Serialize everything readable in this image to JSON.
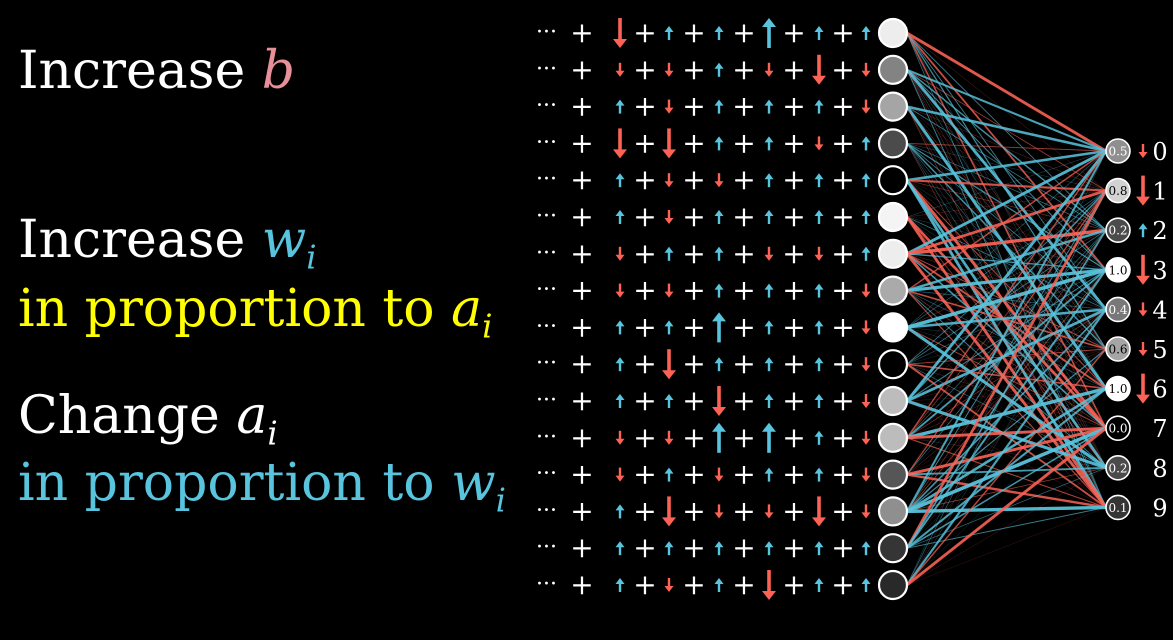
{
  "colors": {
    "background": "#000000",
    "white": "#ffffff",
    "yellow": "#ffff00",
    "blue": "#58c4dd",
    "red": "#fc6255",
    "pink": "#e8909a"
  },
  "text": {
    "line1": {
      "word": "Increase",
      "var": "b"
    },
    "line2": {
      "word": "Increase",
      "var": "w",
      "sub": "i"
    },
    "line3": {
      "word": "in proportion to",
      "var": "a",
      "sub": "i"
    },
    "line4": {
      "word": "Change",
      "var": "a",
      "sub": "i"
    },
    "line5": {
      "word": "in proportion to",
      "var": "w",
      "sub": "i"
    }
  },
  "sum_symbols": {
    "dots": "···",
    "plus": "+"
  },
  "hidden_layer": {
    "activations": [
      0.92,
      0.45,
      0.6,
      0.2,
      0.0,
      0.95,
      0.92,
      0.62,
      1.0,
      0.0,
      0.7,
      0.7,
      0.25,
      0.5,
      0.1,
      0.05
    ],
    "arrow_rows": [
      [
        -2,
        1,
        1,
        2,
        1,
        1,
        1
      ],
      [
        -1,
        -1,
        1,
        -1,
        -2,
        -1,
        0
      ],
      [
        1,
        -1,
        1,
        1,
        1,
        -1,
        2
      ],
      [
        -2,
        -2,
        1,
        1,
        -1,
        1,
        1
      ],
      [
        1,
        -1,
        -1,
        1,
        1,
        1,
        1
      ],
      [
        1,
        -1,
        1,
        1,
        1,
        1,
        -1
      ],
      [
        -1,
        1,
        1,
        -1,
        -1,
        1,
        -1
      ],
      [
        -1,
        -1,
        1,
        1,
        1,
        -1,
        1
      ],
      [
        1,
        1,
        2,
        1,
        1,
        -1,
        -2
      ],
      [
        1,
        -2,
        1,
        1,
        1,
        -1,
        1
      ],
      [
        1,
        1,
        -2,
        1,
        1,
        -1,
        1
      ],
      [
        -1,
        -1,
        2,
        2,
        1,
        -1,
        -1
      ],
      [
        -1,
        1,
        -1,
        1,
        1,
        -1,
        0
      ],
      [
        1,
        -2,
        -1,
        -1,
        -2,
        -1,
        1
      ],
      [
        1,
        1,
        1,
        1,
        1,
        1,
        -1
      ],
      [
        1,
        -1,
        1,
        -2,
        1,
        1,
        1
      ]
    ]
  },
  "output_layer": [
    {
      "digit": "0",
      "value": "0.5",
      "nudge": -1
    },
    {
      "digit": "1",
      "value": "0.8",
      "nudge": -2
    },
    {
      "digit": "2",
      "value": "0.2",
      "nudge": 1
    },
    {
      "digit": "3",
      "value": "1.0",
      "nudge": -2
    },
    {
      "digit": "4",
      "value": "0.4",
      "nudge": -1
    },
    {
      "digit": "5",
      "value": "0.6",
      "nudge": -1
    },
    {
      "digit": "6",
      "value": "1.0",
      "nudge": -2
    },
    {
      "digit": "7",
      "value": "0.0",
      "nudge": 0
    },
    {
      "digit": "8",
      "value": "0.2",
      "nudge": 0
    },
    {
      "digit": "9",
      "value": "0.1",
      "nudge": 0
    }
  ]
}
